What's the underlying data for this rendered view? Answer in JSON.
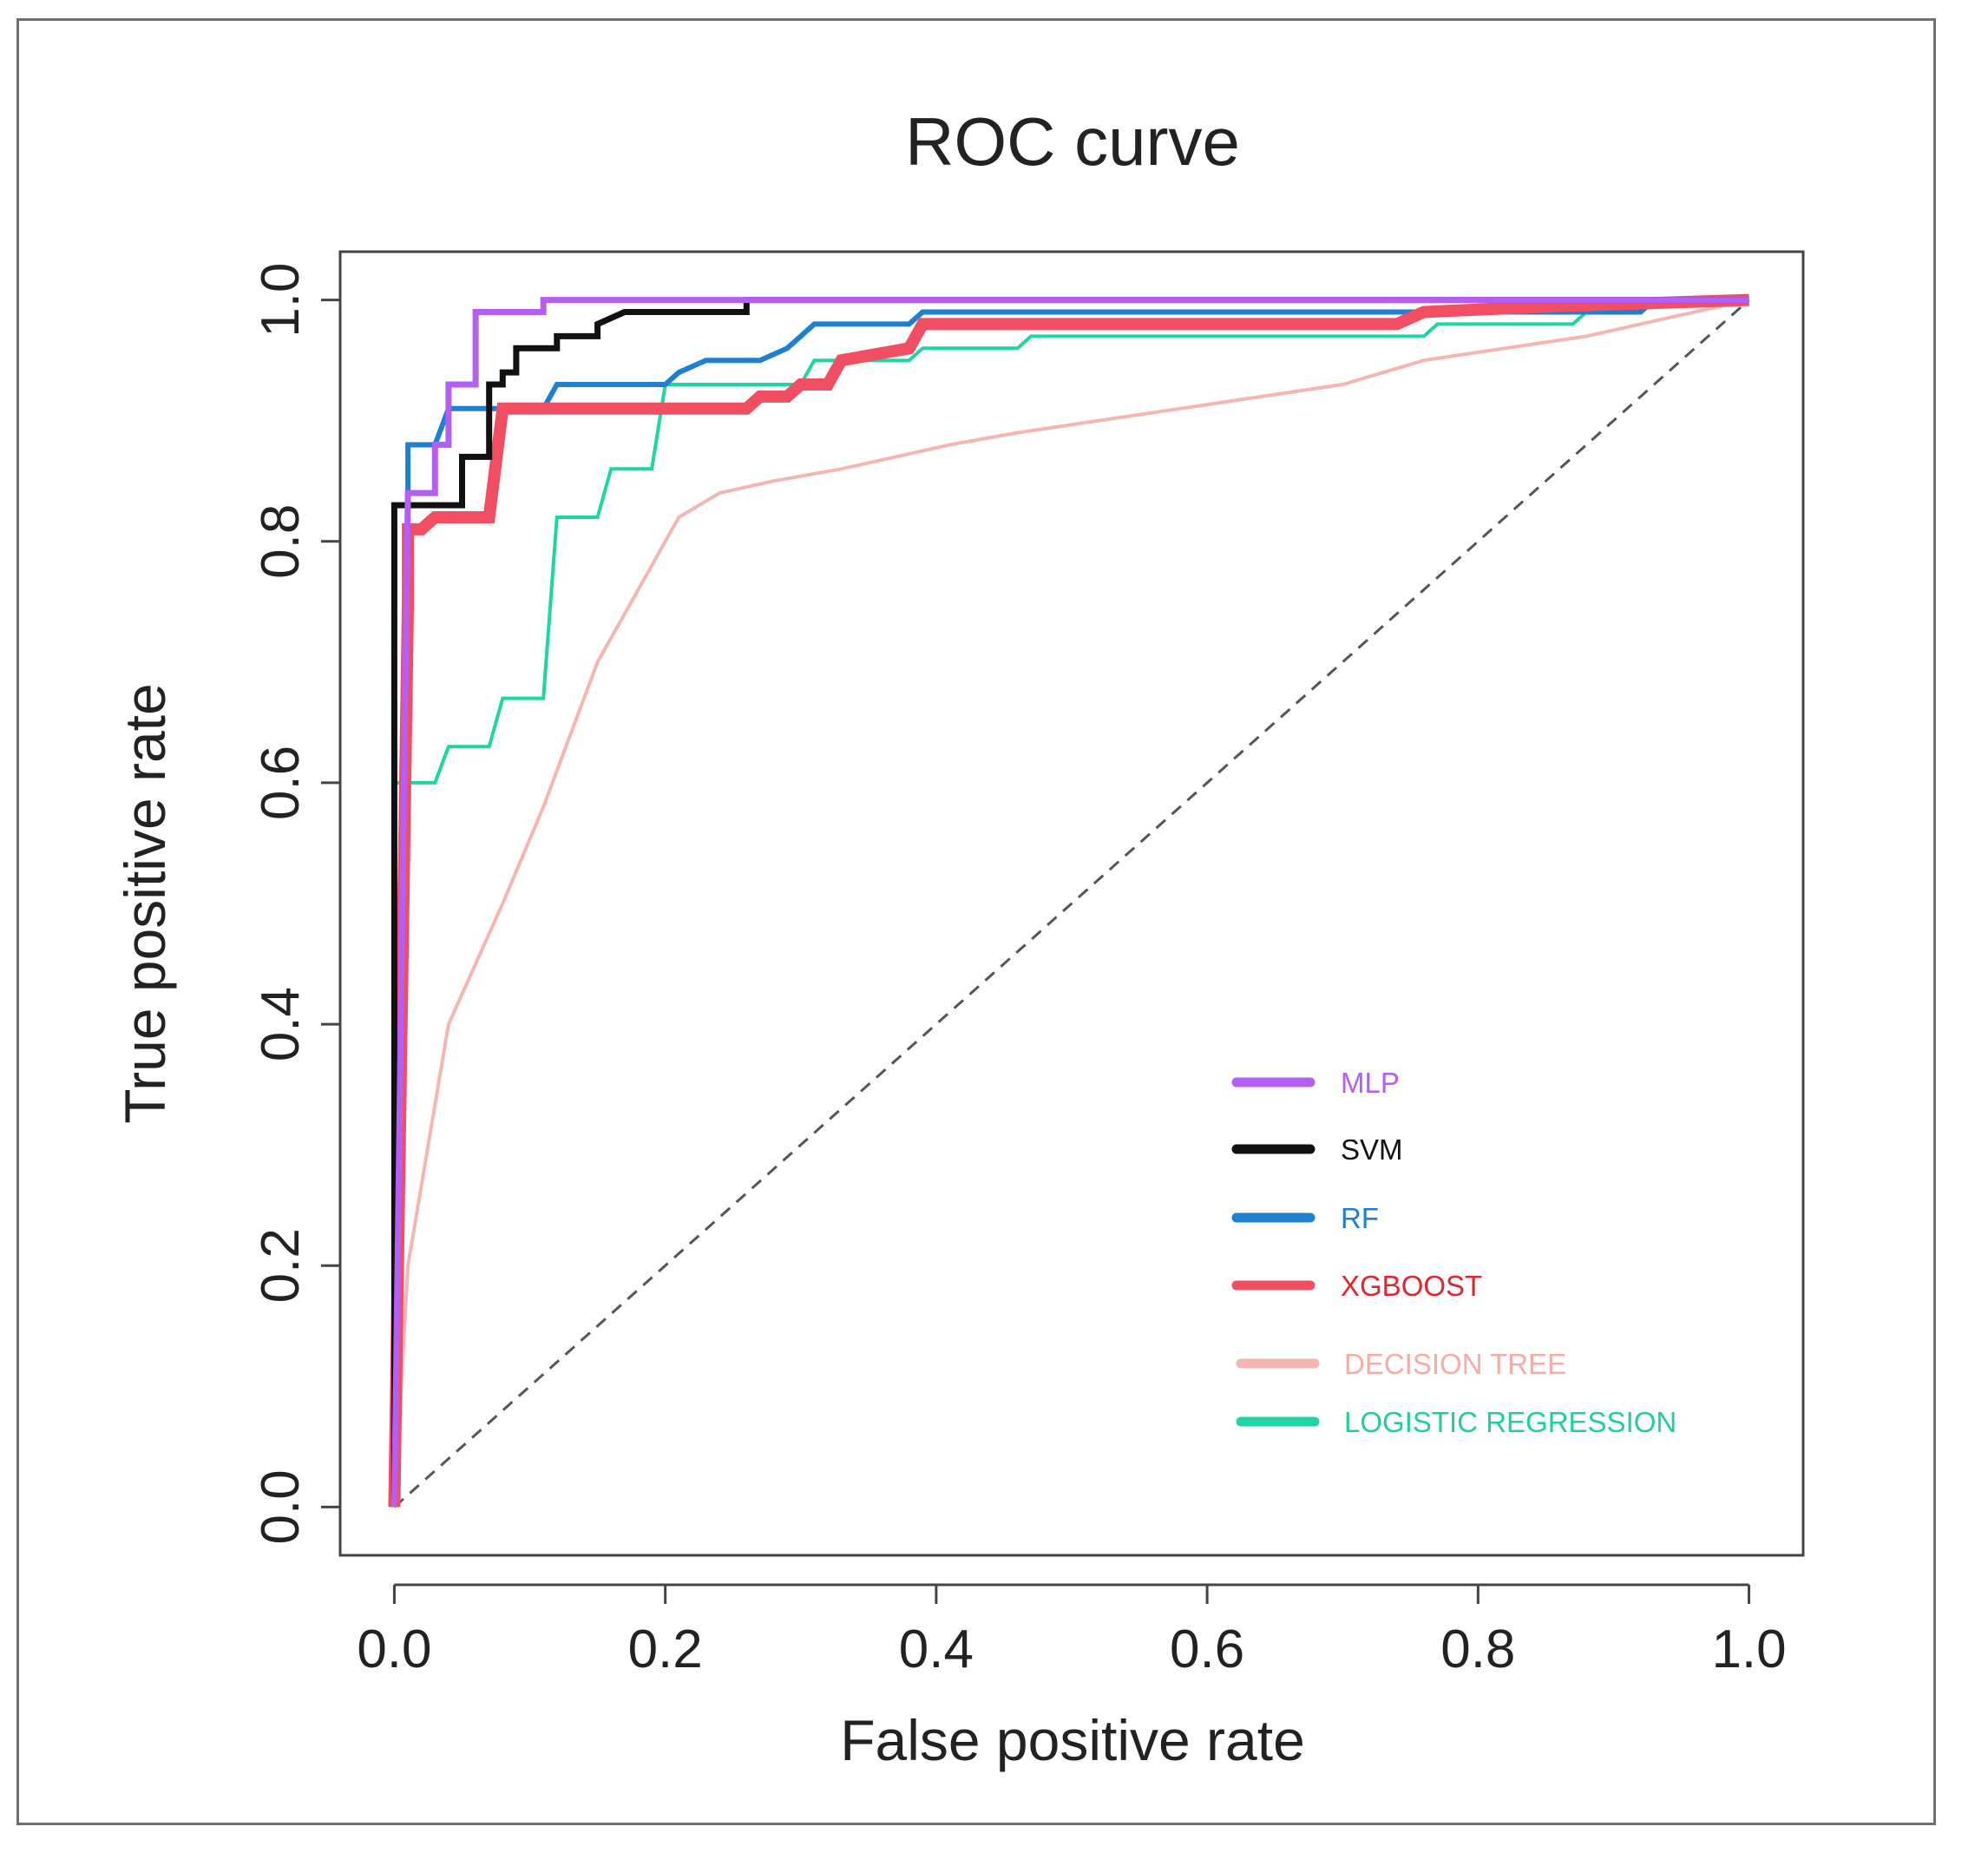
{
  "chart_data": {
    "type": "line",
    "title": "ROC curve",
    "xlabel": "False positive rate",
    "ylabel": "True positive rate",
    "xlim": [
      -0.04,
      1.04
    ],
    "ylim": [
      -0.04,
      1.04
    ],
    "x_ticks": [
      0.0,
      0.2,
      0.4,
      0.6,
      0.8,
      1.0
    ],
    "y_ticks": [
      0.0,
      0.2,
      0.4,
      0.6,
      0.8,
      1.0
    ],
    "x_tick_labels": [
      "0.0",
      "0.2",
      "0.4",
      "0.6",
      "0.8",
      "1.0"
    ],
    "y_tick_labels": [
      "0.0",
      "0.2",
      "0.4",
      "0.6",
      "0.8",
      "1.0"
    ],
    "grid": false,
    "legend_position": "bottom-right",
    "diagonal": {
      "x": [
        0,
        1
      ],
      "y": [
        0,
        1
      ],
      "color": "#555555",
      "style": "dashed"
    },
    "series": [
      {
        "name": "DECISION TREE",
        "color": "#f5b5b2",
        "label_color": "#f3aca7",
        "x": [
          0.0,
          0.01,
          0.04,
          0.06,
          0.08,
          0.11,
          0.15,
          0.19,
          0.21,
          0.24,
          0.28,
          0.33,
          0.37,
          0.41,
          0.46,
          0.52,
          0.58,
          0.64,
          0.7,
          0.76,
          0.82,
          0.88,
          0.92,
          1.0
        ],
        "y": [
          0.0,
          0.2,
          0.4,
          0.45,
          0.5,
          0.58,
          0.7,
          0.78,
          0.82,
          0.84,
          0.85,
          0.86,
          0.87,
          0.88,
          0.89,
          0.9,
          0.91,
          0.92,
          0.93,
          0.95,
          0.96,
          0.97,
          0.98,
          1.0
        ]
      },
      {
        "name": "LOGISTIC REGRESSION",
        "color": "#1fd6a2",
        "label_color": "#1fcf9c",
        "x": [
          0.0,
          0.0,
          0.01,
          0.03,
          0.04,
          0.07,
          0.08,
          0.11,
          0.12,
          0.15,
          0.16,
          0.19,
          0.2,
          0.3,
          0.31,
          0.38,
          0.39,
          0.46,
          0.47,
          0.76,
          0.77,
          0.87,
          0.88,
          1.0
        ],
        "y": [
          0.0,
          0.6,
          0.6,
          0.6,
          0.63,
          0.63,
          0.67,
          0.67,
          0.82,
          0.82,
          0.86,
          0.86,
          0.93,
          0.93,
          0.95,
          0.95,
          0.96,
          0.96,
          0.97,
          0.97,
          0.98,
          0.98,
          0.99,
          1.0
        ]
      },
      {
        "name": "RF",
        "color": "#1f7fd1",
        "label_color": "#1f7fd1",
        "x": [
          0.0,
          0.01,
          0.01,
          0.03,
          0.04,
          0.11,
          0.12,
          0.2,
          0.21,
          0.23,
          0.27,
          0.29,
          0.3,
          0.31,
          0.38,
          0.39,
          0.92,
          0.93,
          1.0
        ],
        "y": [
          0.0,
          0.84,
          0.88,
          0.88,
          0.91,
          0.91,
          0.93,
          0.93,
          0.94,
          0.95,
          0.95,
          0.96,
          0.97,
          0.98,
          0.98,
          0.99,
          0.99,
          1.0,
          1.0
        ],
        "line_width": 6
      },
      {
        "name": "XGBOOST",
        "color": "#f24e63",
        "label_color": "#e3242f",
        "x": [
          0.0,
          0.01,
          0.01,
          0.02,
          0.03,
          0.04,
          0.07,
          0.08,
          0.26,
          0.27,
          0.29,
          0.3,
          0.32,
          0.33,
          0.38,
          0.39,
          0.74,
          0.76,
          0.86,
          1.0
        ],
        "y": [
          0.0,
          0.75,
          0.81,
          0.81,
          0.82,
          0.82,
          0.82,
          0.91,
          0.91,
          0.92,
          0.92,
          0.93,
          0.93,
          0.95,
          0.96,
          0.98,
          0.98,
          0.99,
          0.995,
          1.0
        ],
        "line_width": 14
      },
      {
        "name": "SVM",
        "color": "#111111",
        "label_color": "#111111",
        "x": [
          0.0,
          0.0,
          0.05,
          0.05,
          0.07,
          0.07,
          0.08,
          0.08,
          0.09,
          0.09,
          0.12,
          0.12,
          0.15,
          0.15,
          0.17,
          0.26,
          0.26,
          1.0
        ],
        "y": [
          0.0,
          0.83,
          0.83,
          0.87,
          0.87,
          0.93,
          0.93,
          0.94,
          0.94,
          0.96,
          0.96,
          0.97,
          0.97,
          0.98,
          0.99,
          0.99,
          1.0,
          1.0
        ],
        "line_width": 7
      },
      {
        "name": "MLP",
        "color": "#b55ef2",
        "label_color": "#b55ef2",
        "x": [
          0.0,
          0.01,
          0.01,
          0.02,
          0.03,
          0.03,
          0.04,
          0.04,
          0.05,
          0.06,
          0.06,
          0.11,
          0.11,
          1.0
        ],
        "y": [
          0.0,
          0.84,
          0.84,
          0.84,
          0.84,
          0.88,
          0.88,
          0.93,
          0.93,
          0.93,
          0.99,
          0.99,
          1.0,
          1.0
        ],
        "line_width": 7
      }
    ],
    "legend_order": [
      "MLP",
      "SVM",
      "RF",
      "XGBOOST",
      "DECISION TREE",
      "LOGISTIC REGRESSION"
    ]
  }
}
